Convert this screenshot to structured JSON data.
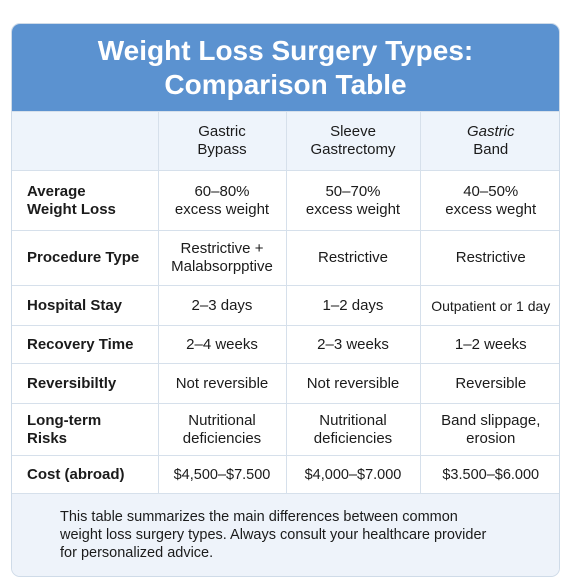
{
  "title": {
    "line1": "Weight Loss Surgery Types:",
    "line2": "Comparison Table"
  },
  "columns": [
    {
      "line1": "Gastric",
      "line2": "Bypass"
    },
    {
      "line1": "Sleeve",
      "line2": "Gastrectomy"
    },
    {
      "line1": "Gastric",
      "line2": "Band"
    }
  ],
  "rows": [
    {
      "label": [
        "Average",
        "Weight Loss"
      ],
      "cells": [
        [
          "60–80%",
          "excess weight"
        ],
        [
          "50–70%",
          "excess weight"
        ],
        [
          "40–50%",
          "excess weght"
        ]
      ]
    },
    {
      "label": [
        "Procedure Type"
      ],
      "cells": [
        [
          "Restrictive +",
          "Malabsorpptive"
        ],
        [
          "Restrictive"
        ],
        [
          "Restrictive"
        ]
      ]
    },
    {
      "label": [
        "Hospital Stay"
      ],
      "cells": [
        [
          "2–3 days"
        ],
        [
          "1–2 days"
        ],
        [
          "Outpatient or 1 day"
        ]
      ]
    },
    {
      "label": [
        "Recovery Time"
      ],
      "cells": [
        [
          "2–4 weeks"
        ],
        [
          "2–3 weeks"
        ],
        [
          "1–2 weeks"
        ]
      ]
    },
    {
      "label": [
        "Reversibiltly"
      ],
      "cells": [
        [
          "Not reversible"
        ],
        [
          "Not reversible"
        ],
        [
          "Reversible"
        ]
      ]
    },
    {
      "label": [
        "Long-term",
        "Risks"
      ],
      "cells": [
        [
          "Nutritional",
          "deficiencies"
        ],
        [
          "Nutritional",
          "deficiencies"
        ],
        [
          "Band slippage,",
          "erosion"
        ]
      ]
    },
    {
      "label": [
        "Cost (abroad)"
      ],
      "cells": [
        [
          "$4,500–$7.500"
        ],
        [
          "$4,000–$7.000"
        ],
        [
          "$3.500–$6.000"
        ]
      ]
    }
  ],
  "footer": {
    "line1": "This table summarizes the main differences between common",
    "line2": "weight loss surgery types. Always consult your healthcare provider",
    "line3": "for personalized advice."
  }
}
